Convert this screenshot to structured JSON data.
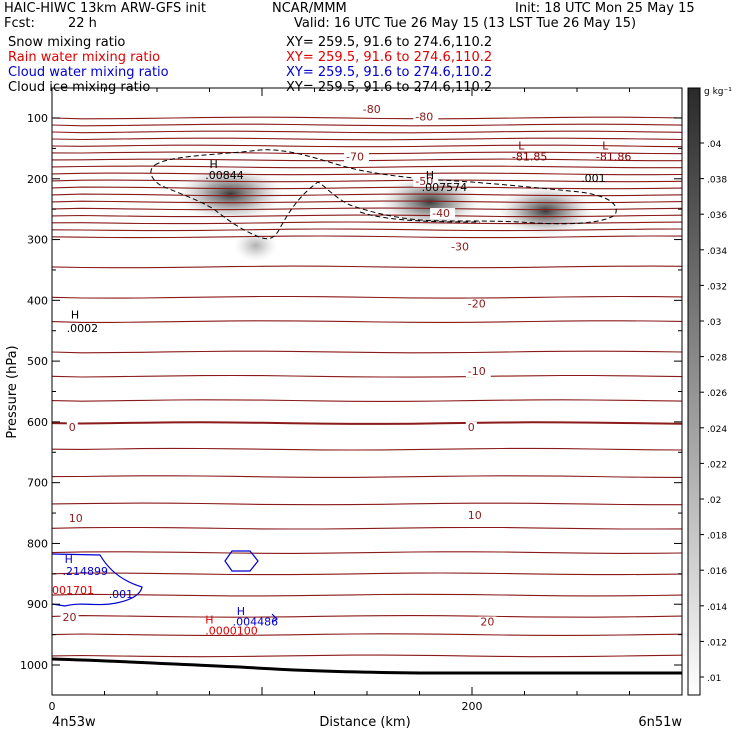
{
  "header": {
    "model": "HAIC-HIWC 13km ARW-GFS init",
    "center": "NCAR/MMM",
    "init": "Init: 18 UTC Mon 25 May 15",
    "fcst_label": "Fcst:",
    "fcst_value": "22 h",
    "valid": "Valid: 16 UTC Tue 26 May 15 (13 LST Tue 26 May 15)"
  },
  "fields": [
    {
      "name": "Snow mixing ratio",
      "xy": "XY= 259.5, 91.6 to 274.6,110.2",
      "color": "#000000"
    },
    {
      "name": "Rain water mixing ratio",
      "xy": "XY= 259.5, 91.6 to 274.6,110.2",
      "color": "#e00000"
    },
    {
      "name": "Cloud water mixing ratio",
      "xy": "XY= 259.5, 91.6 to 274.6,110.2",
      "color": "#0000d0"
    },
    {
      "name": "Cloud ice mixing ratio",
      "xy": "XY= 259.5, 91.6 to 274.6,110.2",
      "color": "#000000"
    }
  ],
  "chart_data": {
    "type": "heatmap",
    "xlabel": "Distance (km)",
    "ylabel": "Pressure (hPa)",
    "xlim": [
      0,
      300
    ],
    "ylim": [
      1050,
      50
    ],
    "x_ticks": [
      {
        "value": 0,
        "label": "0"
      },
      {
        "value": 200,
        "label": "200"
      }
    ],
    "y_ticks": [
      {
        "value": 100,
        "label": "100"
      },
      {
        "value": 200,
        "label": "200"
      },
      {
        "value": 300,
        "label": "300"
      },
      {
        "value": 400,
        "label": "400"
      },
      {
        "value": 500,
        "label": "500"
      },
      {
        "value": 600,
        "label": "600"
      },
      {
        "value": 700,
        "label": "700"
      },
      {
        "value": 800,
        "label": "800"
      },
      {
        "value": 900,
        "label": "900"
      },
      {
        "value": 1000,
        "label": "1000"
      }
    ],
    "x_endpoints": {
      "left": "4n53w",
      "right": "6n51w"
    },
    "colorbar": {
      "unit": "g kg⁻¹",
      "ticks": [
        ".01",
        ".012",
        ".014",
        ".016",
        ".018",
        ".02",
        ".022",
        ".024",
        ".026",
        ".028",
        ".03",
        ".032",
        ".034",
        ".036",
        ".038",
        ".04"
      ]
    },
    "ice_blobs": [
      {
        "x": 85,
        "p": 225,
        "intensity": 0.045
      },
      {
        "x": 180,
        "p": 238,
        "intensity": 0.04
      },
      {
        "x": 235,
        "p": 253,
        "intensity": 0.035
      }
    ],
    "temperature_labels": [
      {
        "x": 148,
        "p": 92,
        "text": "-80"
      },
      {
        "x": 173,
        "p": 104,
        "text": "-80"
      },
      {
        "x": 140,
        "p": 170,
        "text": "-70"
      },
      {
        "x": 173,
        "p": 210,
        "text": "-50"
      },
      {
        "x": 181,
        "p": 263,
        "text": "-40"
      },
      {
        "x": 190,
        "p": 318,
        "text": "-30"
      },
      {
        "x": 198,
        "p": 412,
        "text": "-20"
      },
      {
        "x": 198,
        "p": 523,
        "text": "-10"
      },
      {
        "x": 8,
        "p": 615,
        "text": "0"
      },
      {
        "x": 198,
        "p": 615,
        "text": "0"
      },
      {
        "x": 8,
        "p": 765,
        "text": "10"
      },
      {
        "x": 198,
        "p": 760,
        "text": "10"
      },
      {
        "x": 204,
        "p": 935,
        "text": "20"
      },
      {
        "x": 5,
        "p": 928,
        "text": "20"
      }
    ],
    "annotations": [
      {
        "x": 75,
        "p": 182,
        "text": "H",
        "color": "#000000"
      },
      {
        "x": 73,
        "p": 200,
        "text": ".00844",
        "color": "#000000"
      },
      {
        "x": 178,
        "p": 200,
        "text": "H",
        "color": "#000000"
      },
      {
        "x": 176,
        "p": 220,
        "text": ".007574",
        "color": "#000000"
      },
      {
        "x": 252,
        "p": 205,
        "text": ".001",
        "color": "#000000"
      },
      {
        "x": 222,
        "p": 152,
        "text": "L",
        "color": "#800000"
      },
      {
        "x": 219,
        "p": 170,
        "text": "-81.85",
        "color": "#800000"
      },
      {
        "x": 262,
        "p": 152,
        "text": "L",
        "color": "#800000"
      },
      {
        "x": 259,
        "p": 170,
        "text": "-81.86",
        "color": "#800000"
      },
      {
        "x": 9,
        "p": 430,
        "text": "H",
        "color": "#000000"
      },
      {
        "x": 7,
        "p": 452,
        "text": ".0002",
        "color": "#000000"
      },
      {
        "x": 6,
        "p": 832,
        "text": "H",
        "color": "#0000d0"
      },
      {
        "x": 5,
        "p": 852,
        "text": ".214899",
        "color": "#0000d0"
      },
      {
        "x": 0,
        "p": 883,
        "text": "001701",
        "color": "#e00000"
      },
      {
        "x": 27,
        "p": 890,
        "text": ".001",
        "color": "#0000d0"
      },
      {
        "x": 88,
        "p": 918,
        "text": "H",
        "color": "#0000d0"
      },
      {
        "x": 73,
        "p": 932,
        "text": "H",
        "color": "#e00000"
      },
      {
        "x": 86,
        "p": 935,
        "text": ".004486",
        "color": "#0000d0"
      },
      {
        "x": 73,
        "p": 950,
        "text": ".0000100",
        "color": "#e00000"
      }
    ]
  }
}
